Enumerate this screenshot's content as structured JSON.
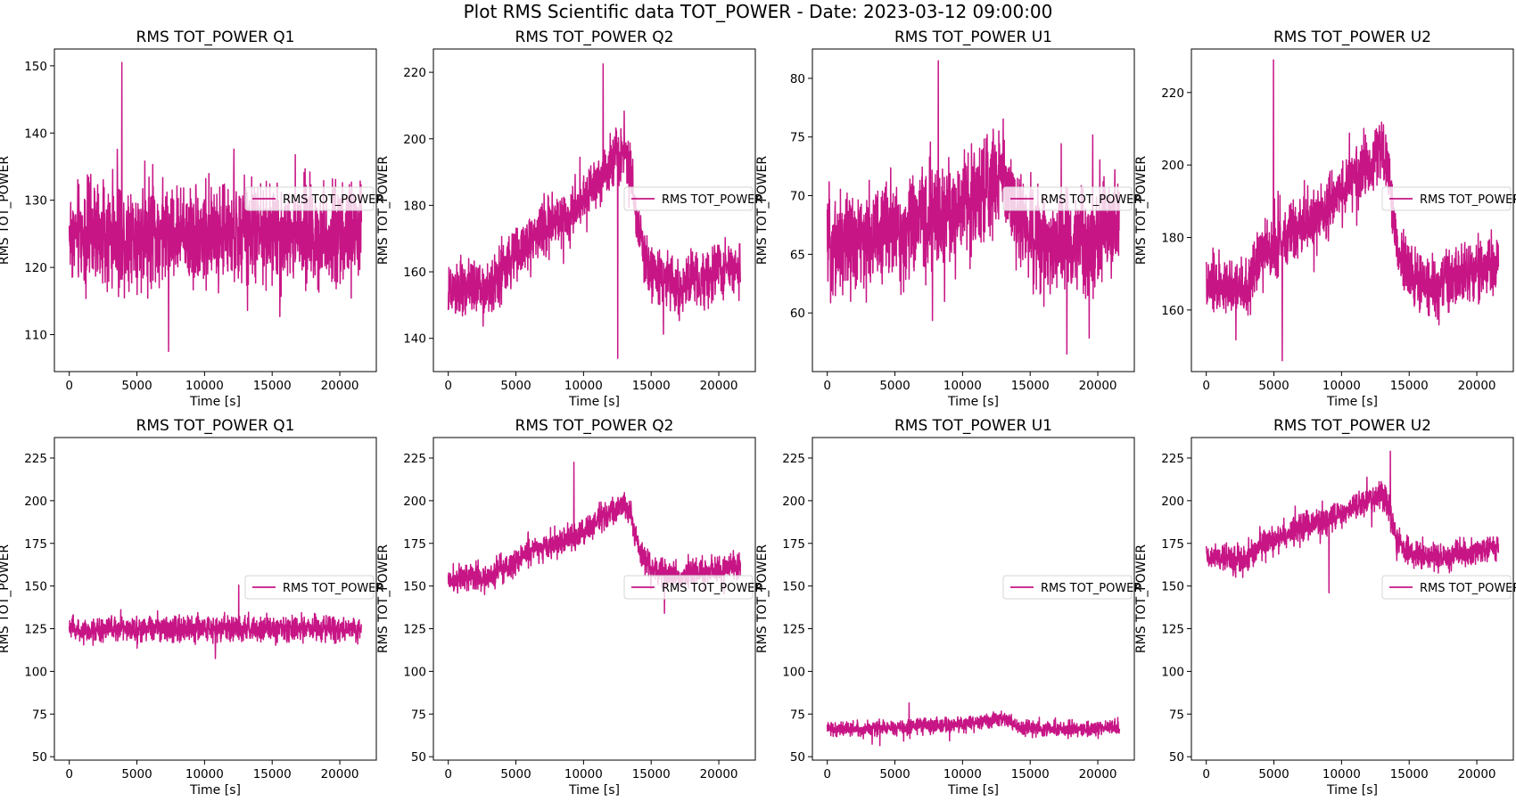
{
  "figure": {
    "title": "Plot RMS Scientific data TOT_POWER - Date: 2023-03-12 09:00:00"
  },
  "colors": {
    "series": "#c71585",
    "axes": "#000000",
    "background": "#ffffff"
  },
  "chart_data": [
    {
      "type": "line",
      "title": "RMS TOT_POWER Q1",
      "xlabel": "Time [s]",
      "ylabel": "RMS TOT_POWER",
      "xlim": [
        -1100,
        22700
      ],
      "ylim": [
        104.5,
        152.5
      ],
      "xticks": [
        0,
        5000,
        10000,
        15000,
        20000
      ],
      "yticks": [
        110,
        120,
        130,
        140,
        150
      ],
      "legend": "right",
      "series": [
        {
          "name": "RMS TOT_POWER",
          "color": "#c71585",
          "x": [
            0,
            1000,
            2000,
            3000,
            4000,
            5000,
            6000,
            7000,
            8000,
            9000,
            10000,
            11000,
            12000,
            13000,
            14000,
            15000,
            16000,
            17000,
            18000,
            19000,
            20000,
            21000,
            21600
          ],
          "y": [
            125,
            125,
            125,
            125,
            125,
            125,
            125,
            125,
            125,
            125,
            125,
            125,
            125,
            125,
            125,
            125,
            125,
            125,
            125,
            125,
            125,
            125,
            125
          ],
          "noise": 5.5,
          "max_y": 150.5,
          "min_y": 107.5
        }
      ]
    },
    {
      "type": "line",
      "title": "RMS TOT_POWER Q2",
      "xlabel": "Time [s]",
      "ylabel": "RMS TOT_POWER",
      "xlim": [
        -1100,
        22700
      ],
      "ylim": [
        130,
        227
      ],
      "xticks": [
        0,
        5000,
        10000,
        15000,
        20000
      ],
      "yticks": [
        140,
        160,
        180,
        200,
        220
      ],
      "legend": "right",
      "series": [
        {
          "name": "RMS TOT_POWER",
          "color": "#c71585",
          "x": [
            0,
            1000,
            2000,
            3000,
            4000,
            5000,
            6000,
            7000,
            8000,
            9000,
            10000,
            11000,
            12000,
            13000,
            13500,
            14000,
            15000,
            16000,
            17000,
            18000,
            19000,
            20000,
            21000,
            21600
          ],
          "y": [
            153,
            155,
            156,
            154,
            160,
            165,
            170,
            173,
            175,
            178,
            182,
            188,
            193,
            197,
            192,
            172,
            160,
            158,
            156,
            157,
            158,
            160,
            162,
            161
          ],
          "noise": 6,
          "max_y": 222.5,
          "min_y": 134
        }
      ]
    },
    {
      "type": "line",
      "title": "RMS TOT_POWER U1",
      "xlabel": "Time [s]",
      "ylabel": "RMS TOT_POWER",
      "xlim": [
        -1100,
        22700
      ],
      "ylim": [
        55,
        82.5
      ],
      "xticks": [
        0,
        5000,
        10000,
        15000,
        20000
      ],
      "yticks": [
        60,
        65,
        70,
        75,
        80
      ],
      "legend": "right",
      "series": [
        {
          "name": "RMS TOT_POWER",
          "color": "#c71585",
          "x": [
            0,
            1000,
            2000,
            3000,
            4000,
            5000,
            6000,
            7000,
            8000,
            9000,
            10000,
            11000,
            12000,
            13000,
            13500,
            14000,
            15000,
            16000,
            17000,
            18000,
            19000,
            20000,
            21000,
            21600
          ],
          "y": [
            66,
            66,
            66,
            66,
            67,
            67,
            67,
            68,
            68,
            68,
            69,
            70,
            71,
            72,
            71,
            68,
            67,
            66,
            66,
            66,
            66,
            67,
            67,
            67
          ],
          "noise": 3.2,
          "max_y": 81.5,
          "min_y": 56.5
        }
      ]
    },
    {
      "type": "line",
      "title": "RMS TOT_POWER U2",
      "xlabel": "Time [s]",
      "ylabel": "RMS TOT_POWER",
      "xlim": [
        -1100,
        22700
      ],
      "ylim": [
        143,
        232
      ],
      "xticks": [
        0,
        5000,
        10000,
        15000,
        20000
      ],
      "yticks": [
        160,
        180,
        200,
        220
      ],
      "legend": "right",
      "series": [
        {
          "name": "RMS TOT_POWER",
          "color": "#c71585",
          "x": [
            0,
            1000,
            2000,
            3000,
            4000,
            5000,
            6000,
            7000,
            8000,
            9000,
            10000,
            11000,
            12000,
            13000,
            13500,
            14000,
            15000,
            16000,
            17000,
            18000,
            19000,
            20000,
            21000,
            21600
          ],
          "y": [
            166,
            167,
            166,
            165,
            175,
            177,
            180,
            183,
            186,
            188,
            192,
            197,
            200,
            204,
            198,
            178,
            170,
            167,
            166,
            168,
            170,
            171,
            172,
            172
          ],
          "noise": 6,
          "max_y": 229,
          "min_y": 146
        }
      ]
    },
    {
      "type": "line",
      "title": "RMS TOT_POWER Q1",
      "xlabel": "Time [s]",
      "ylabel": "RMS TOT_POWER",
      "xlim": [
        -1100,
        22700
      ],
      "ylim": [
        48,
        237
      ],
      "xticks": [
        0,
        5000,
        10000,
        15000,
        20000
      ],
      "yticks": [
        50,
        75,
        100,
        125,
        150,
        175,
        200,
        225
      ],
      "legend": "right",
      "series": [
        {
          "name": "RMS TOT_POWER",
          "color": "#c71585",
          "x": [
            0,
            1000,
            2000,
            3000,
            4000,
            5000,
            6000,
            7000,
            8000,
            9000,
            10000,
            11000,
            12000,
            13000,
            14000,
            15000,
            16000,
            17000,
            18000,
            19000,
            20000,
            21000,
            21600
          ],
          "y": [
            125,
            125,
            125,
            125,
            125,
            125,
            125,
            125,
            125,
            125,
            125,
            125,
            125,
            125,
            125,
            125,
            125,
            125,
            125,
            125,
            125,
            125,
            125
          ],
          "noise": 5.5,
          "max_y": 150.5,
          "min_y": 107.5
        }
      ]
    },
    {
      "type": "line",
      "title": "RMS TOT_POWER Q2",
      "xlabel": "Time [s]",
      "ylabel": "RMS TOT_POWER",
      "xlim": [
        -1100,
        22700
      ],
      "ylim": [
        48,
        237
      ],
      "xticks": [
        0,
        5000,
        10000,
        15000,
        20000
      ],
      "yticks": [
        50,
        75,
        100,
        125,
        150,
        175,
        200,
        225
      ],
      "legend": "right",
      "series": [
        {
          "name": "RMS TOT_POWER",
          "color": "#c71585",
          "x": [
            0,
            1000,
            2000,
            3000,
            4000,
            5000,
            6000,
            7000,
            8000,
            9000,
            10000,
            11000,
            12000,
            13000,
            13500,
            14000,
            15000,
            16000,
            17000,
            18000,
            19000,
            20000,
            21000,
            21600
          ],
          "y": [
            153,
            155,
            156,
            154,
            160,
            165,
            170,
            173,
            175,
            178,
            182,
            188,
            193,
            197,
            192,
            172,
            160,
            158,
            156,
            157,
            158,
            160,
            162,
            161
          ],
          "noise": 6,
          "max_y": 222.5,
          "min_y": 134
        }
      ]
    },
    {
      "type": "line",
      "title": "RMS TOT_POWER U1",
      "xlabel": "Time [s]",
      "ylabel": "RMS TOT_POWER",
      "xlim": [
        -1100,
        22700
      ],
      "ylim": [
        48,
        237
      ],
      "xticks": [
        0,
        5000,
        10000,
        15000,
        20000
      ],
      "yticks": [
        50,
        75,
        100,
        125,
        150,
        175,
        200,
        225
      ],
      "legend": "right",
      "series": [
        {
          "name": "RMS TOT_POWER",
          "color": "#c71585",
          "x": [
            0,
            1000,
            2000,
            3000,
            4000,
            5000,
            6000,
            7000,
            8000,
            9000,
            10000,
            11000,
            12000,
            13000,
            13500,
            14000,
            15000,
            16000,
            17000,
            18000,
            19000,
            20000,
            21000,
            21600
          ],
          "y": [
            66,
            66,
            66,
            66,
            67,
            67,
            67,
            68,
            68,
            68,
            69,
            70,
            71,
            72,
            71,
            68,
            67,
            66,
            66,
            66,
            66,
            67,
            67,
            67
          ],
          "noise": 3.2,
          "max_y": 81.5,
          "min_y": 56.5
        }
      ]
    },
    {
      "type": "line",
      "title": "RMS TOT_POWER U2",
      "xlabel": "Time [s]",
      "ylabel": "RMS TOT_POWER",
      "xlim": [
        -1100,
        22700
      ],
      "ylim": [
        48,
        237
      ],
      "xticks": [
        0,
        5000,
        10000,
        15000,
        20000
      ],
      "yticks": [
        50,
        75,
        100,
        125,
        150,
        175,
        200,
        225
      ],
      "legend": "right",
      "series": [
        {
          "name": "RMS TOT_POWER",
          "color": "#c71585",
          "x": [
            0,
            1000,
            2000,
            3000,
            4000,
            5000,
            6000,
            7000,
            8000,
            9000,
            10000,
            11000,
            12000,
            13000,
            13500,
            14000,
            15000,
            16000,
            17000,
            18000,
            19000,
            20000,
            21000,
            21600
          ],
          "y": [
            166,
            167,
            166,
            165,
            175,
            177,
            180,
            183,
            186,
            188,
            192,
            197,
            200,
            204,
            198,
            178,
            170,
            167,
            166,
            168,
            170,
            171,
            172,
            172
          ],
          "noise": 6,
          "max_y": 229,
          "min_y": 146
        }
      ]
    }
  ]
}
